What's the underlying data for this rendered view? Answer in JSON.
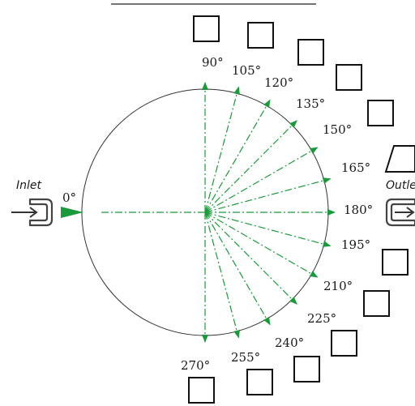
{
  "diagram": {
    "inlet_label": "Inlet",
    "outlet_label": "Outle",
    "accent_color": "#1a9a3a",
    "line_color": "#222222",
    "icons": [
      "inlet-port-icon",
      "outlet-port-icon",
      "arrow-right-icon",
      "checkbox-icon"
    ],
    "angles": [
      {
        "value": 0,
        "label": "0°"
      },
      {
        "value": 90,
        "label": "90°"
      },
      {
        "value": 105,
        "label": "105°"
      },
      {
        "value": 120,
        "label": "120°"
      },
      {
        "value": 135,
        "label": "135°"
      },
      {
        "value": 150,
        "label": "150°"
      },
      {
        "value": 165,
        "label": "165°"
      },
      {
        "value": 180,
        "label": "180°"
      },
      {
        "value": 195,
        "label": "195°"
      },
      {
        "value": 210,
        "label": "210°"
      },
      {
        "value": 225,
        "label": "225°"
      },
      {
        "value": 240,
        "label": "240°"
      },
      {
        "value": 255,
        "label": "255°"
      },
      {
        "value": 270,
        "label": "270°"
      }
    ],
    "checkboxes": [
      {
        "angle": 90,
        "checked": false
      },
      {
        "angle": 105,
        "checked": false
      },
      {
        "angle": 120,
        "checked": false
      },
      {
        "angle": 135,
        "checked": false
      },
      {
        "angle": 150,
        "checked": false
      },
      {
        "angle": 165,
        "checked": false
      },
      {
        "angle": 195,
        "checked": false
      },
      {
        "angle": 210,
        "checked": false
      },
      {
        "angle": 225,
        "checked": false
      },
      {
        "angle": 240,
        "checked": false
      },
      {
        "angle": 255,
        "checked": false
      },
      {
        "angle": 270,
        "checked": false
      }
    ]
  }
}
